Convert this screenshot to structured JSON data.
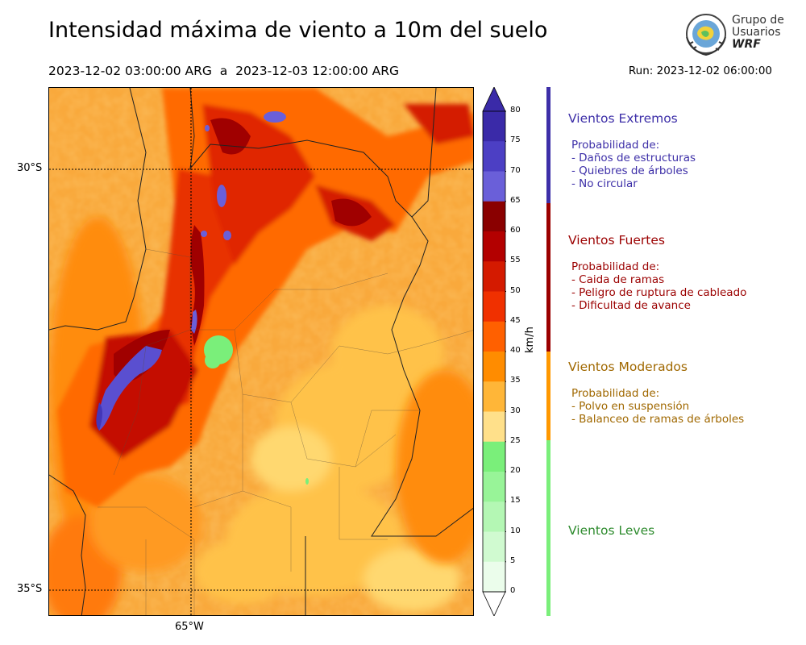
{
  "header": {
    "title": "Intensidad máxima de viento a 10m del suelo",
    "period": "2023-12-02 03:00:00 ARG  a  2023-12-03 12:00:00 ARG",
    "run": "Run: 2023-12-02 06:00:00"
  },
  "logo": {
    "line1": "Grupo de",
    "line2": "Usuarios",
    "line3": "WRF"
  },
  "map": {
    "lat_labels": [
      "30°S",
      "35°S"
    ],
    "lon_labels": [
      "65°W"
    ]
  },
  "colorbar": {
    "unit": "km/h",
    "ticks": [
      "80",
      "75",
      "70",
      "65",
      "60",
      "55",
      "50",
      "45",
      "40",
      "35",
      "30",
      "25",
      "20",
      "15",
      "10",
      "5",
      "0"
    ],
    "colors": [
      "#3a2aa8",
      "#4c3fc4",
      "#6a5fd9",
      "#8a0000",
      "#b30000",
      "#d41a00",
      "#f03000",
      "#ff6000",
      "#ff8c00",
      "#ffb638",
      "#ffe08a",
      "#7aef7a",
      "#98f498",
      "#b4f7b4",
      "#d0fad0",
      "#ebfdeb"
    ]
  },
  "legend": [
    {
      "title": "Vientos Extremos",
      "desc": "Probabilidad de:\n- Daños de estructuras\n- Quiebres de árboles\n- No circular",
      "color": "#3d2fa8"
    },
    {
      "title": "Vientos Fuertes",
      "desc": "Probabilidad de:\n- Caida de ramas\n- Peligro de ruptura de cableado\n- Dificultad de avance",
      "color": "#9b0000"
    },
    {
      "title": "Vientos Moderados",
      "desc": "Probabilidad de:\n- Polvo en suspensión\n- Balanceo de ramas de árboles",
      "color": "#a06800",
      "bar_color": "#ff9800"
    },
    {
      "title": "Vientos Leves",
      "desc": "",
      "color": "#2e8b2e",
      "bar_color": "#7aef7a"
    }
  ]
}
